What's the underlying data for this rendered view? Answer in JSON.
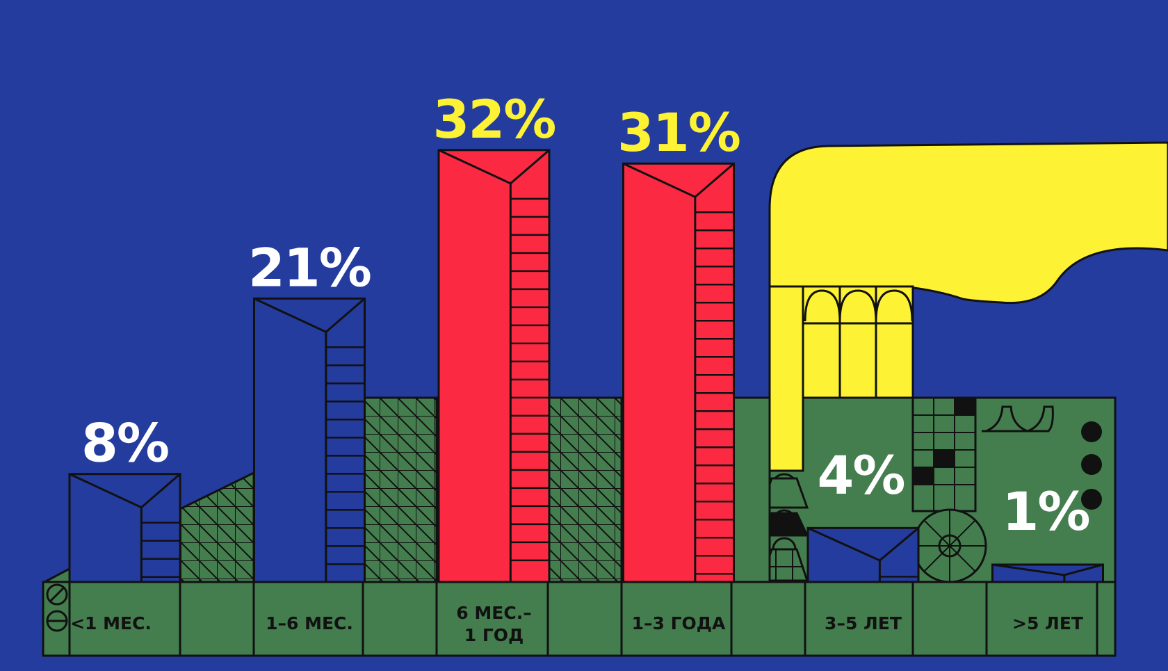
{
  "chart_data": {
    "type": "bar",
    "categories": [
      "<1 МЕС.",
      "1–6 МЕС.",
      "6 МЕС.–\n1 ГОД",
      "1–3 ГОДА",
      "3–5 ЛЕТ",
      ">5 ЛЕТ"
    ],
    "values": [
      8,
      21,
      32,
      31,
      4,
      1
    ],
    "value_labels": [
      "8%",
      "21%",
      "32%",
      "31%",
      "4%",
      "1%"
    ],
    "ylim": [
      0,
      34
    ],
    "bar_colors": [
      "#243c9e",
      "#243c9e",
      "#fb2a42",
      "#fb2a42",
      "#243c9e",
      "#243c9e"
    ],
    "label_colors": [
      "#ffffff",
      "#ffffff",
      "#fdf234",
      "#fdf234",
      "#ffffff",
      "#ffffff"
    ],
    "grid": false,
    "legend": "none"
  },
  "colors": {
    "background": "#243c9e",
    "ground": "#447e4e",
    "accent_yellow": "#fdf234",
    "accent_red": "#fb2a42",
    "outline": "#111111"
  }
}
